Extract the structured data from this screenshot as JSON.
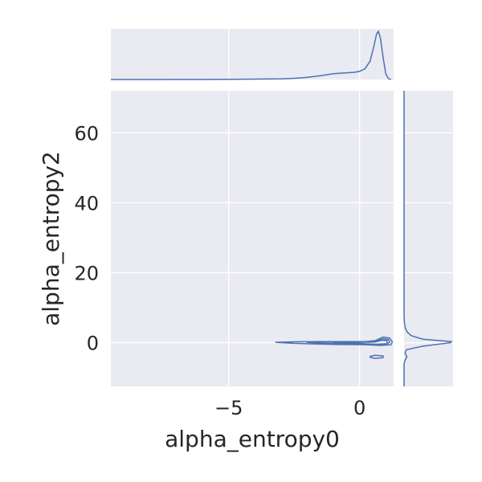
{
  "chart_data": {
    "type": "jointplot-kde",
    "xlabel": "alpha_entropy0",
    "ylabel": "alpha_entropy2",
    "xlim": [
      -9.5,
      1.3
    ],
    "ylim": [
      -12.5,
      72
    ],
    "x_ticks": [
      {
        "value": -5,
        "label": "−5"
      },
      {
        "value": 0,
        "label": "0"
      }
    ],
    "y_ticks": [
      {
        "value": 0,
        "label": "0"
      },
      {
        "value": 20,
        "label": "20"
      },
      {
        "value": 40,
        "label": "40"
      },
      {
        "value": 60,
        "label": "60"
      }
    ],
    "grid": true,
    "series_color": "#4c72b0",
    "background_color": "#eaeaf2",
    "joint_contours": [
      {
        "points": [
          [
            -3.2,
            0.1
          ],
          [
            -2.5,
            0.25
          ],
          [
            -1.5,
            0.3
          ],
          [
            -0.5,
            0.3
          ],
          [
            0.2,
            0.3
          ],
          [
            0.6,
            0.6
          ],
          [
            0.9,
            1.6
          ],
          [
            1.15,
            1.3
          ],
          [
            1.25,
            0.2
          ],
          [
            1.2,
            -0.6
          ],
          [
            0.8,
            -0.8
          ],
          [
            0.2,
            -0.6
          ],
          [
            -1.0,
            -0.5
          ],
          [
            -2.5,
            -0.2
          ]
        ]
      },
      {
        "points": [
          [
            -2.0,
            0.1
          ],
          [
            -1.0,
            0.2
          ],
          [
            0.0,
            0.2
          ],
          [
            0.6,
            0.4
          ],
          [
            0.9,
            1.1
          ],
          [
            1.1,
            0.9
          ],
          [
            1.15,
            0.1
          ],
          [
            1.0,
            -0.5
          ],
          [
            0.5,
            -0.6
          ],
          [
            -0.5,
            -0.35
          ],
          [
            -1.5,
            -0.15
          ]
        ]
      },
      {
        "points": [
          [
            -1.0,
            0.05
          ],
          [
            0.0,
            0.1
          ],
          [
            0.6,
            0.2
          ],
          [
            0.85,
            0.7
          ],
          [
            1.05,
            0.6
          ],
          [
            1.05,
            -0.3
          ],
          [
            0.6,
            -0.45
          ],
          [
            0.0,
            -0.25
          ]
        ]
      },
      {
        "points": [
          [
            0.4,
            -3.9
          ],
          [
            0.6,
            -3.6
          ],
          [
            0.9,
            -3.8
          ],
          [
            0.9,
            -4.3
          ],
          [
            0.6,
            -4.5
          ],
          [
            0.4,
            -4.2
          ]
        ]
      }
    ],
    "x_marginal_density": {
      "x": [
        -9.5,
        -8,
        -6,
        -5,
        -4,
        -3,
        -2.5,
        -2,
        -1.5,
        -1,
        -0.5,
        -0.2,
        0,
        0.2,
        0.4,
        0.55,
        0.65,
        0.72,
        0.8,
        0.9,
        1.0,
        1.1,
        1.2
      ],
      "density": [
        0.0,
        0.0,
        0.002,
        0.004,
        0.008,
        0.015,
        0.025,
        0.045,
        0.08,
        0.12,
        0.14,
        0.15,
        0.17,
        0.22,
        0.38,
        0.7,
        0.95,
        1.0,
        0.85,
        0.45,
        0.12,
        0.02,
        0.0
      ]
    },
    "y_marginal_density": {
      "y": [
        -12.5,
        -6,
        -5,
        -4,
        -3,
        -2,
        -1,
        0,
        0.3,
        1,
        2,
        3,
        4,
        5,
        6,
        8,
        72
      ],
      "density": [
        0.0,
        0.0,
        0.02,
        0.06,
        0.02,
        0.05,
        0.4,
        0.98,
        1.0,
        0.4,
        0.15,
        0.07,
        0.03,
        0.015,
        0.005,
        0.0,
        0.0
      ]
    }
  }
}
